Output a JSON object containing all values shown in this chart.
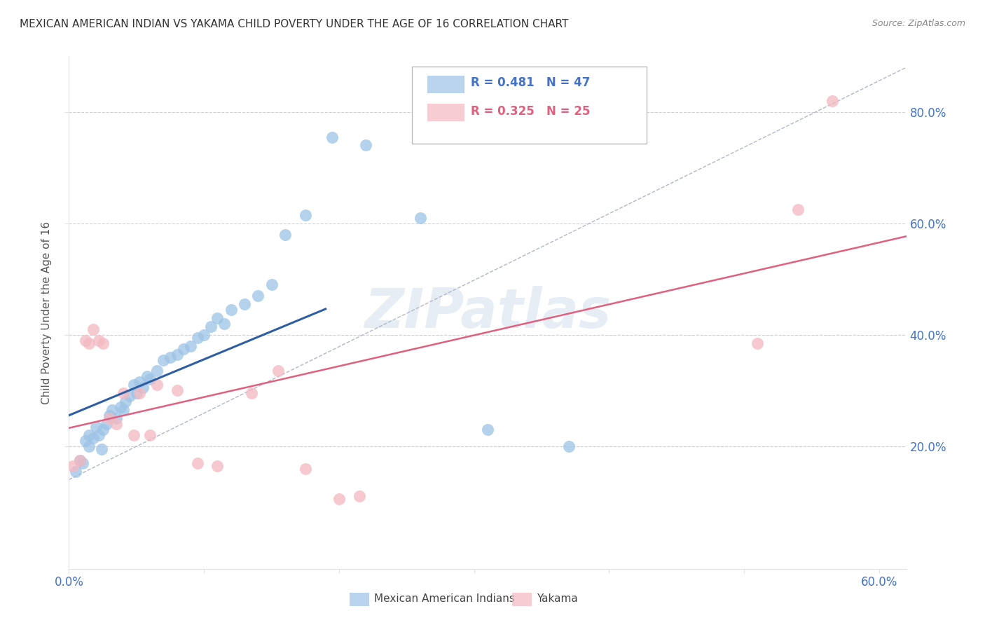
{
  "title": "MEXICAN AMERICAN INDIAN VS YAKAMA CHILD POVERTY UNDER THE AGE OF 16 CORRELATION CHART",
  "source": "Source: ZipAtlas.com",
  "ylabel": "Child Poverty Under the Age of 16",
  "xlim": [
    0.0,
    0.62
  ],
  "ylim": [
    -0.02,
    0.9
  ],
  "xticks": [
    0.0,
    0.1,
    0.2,
    0.3,
    0.4,
    0.5,
    0.6
  ],
  "yticks": [
    0.2,
    0.4,
    0.6,
    0.8
  ],
  "ytick_labels_right": [
    "20.0%",
    "40.0%",
    "60.0%",
    "80.0%"
  ],
  "axis_tick_color": "#4472c4",
  "blue_color": "#9dc3e6",
  "pink_color": "#f4b8c1",
  "blue_line_color": "#2e5fa3",
  "pink_line_color": "#e06080",
  "watermark": "ZIPatlas",
  "blue_scatter_x": [
    0.005,
    0.008,
    0.01,
    0.012,
    0.015,
    0.015,
    0.018,
    0.02,
    0.022,
    0.024,
    0.025,
    0.028,
    0.03,
    0.032,
    0.035,
    0.038,
    0.04,
    0.042,
    0.045,
    0.048,
    0.05,
    0.052,
    0.055,
    0.058,
    0.06,
    0.065,
    0.07,
    0.075,
    0.08,
    0.085,
    0.09,
    0.095,
    0.1,
    0.105,
    0.11,
    0.115,
    0.12,
    0.13,
    0.14,
    0.15,
    0.16,
    0.175,
    0.195,
    0.22,
    0.26,
    0.31,
    0.37
  ],
  "blue_scatter_y": [
    0.155,
    0.175,
    0.17,
    0.21,
    0.2,
    0.22,
    0.215,
    0.235,
    0.22,
    0.195,
    0.23,
    0.24,
    0.255,
    0.265,
    0.25,
    0.27,
    0.265,
    0.28,
    0.29,
    0.31,
    0.295,
    0.315,
    0.305,
    0.325,
    0.32,
    0.335,
    0.355,
    0.36,
    0.365,
    0.375,
    0.38,
    0.395,
    0.4,
    0.415,
    0.43,
    0.42,
    0.445,
    0.455,
    0.47,
    0.49,
    0.58,
    0.615,
    0.755,
    0.74,
    0.61,
    0.23,
    0.2
  ],
  "pink_scatter_x": [
    0.003,
    0.008,
    0.012,
    0.015,
    0.018,
    0.022,
    0.025,
    0.03,
    0.035,
    0.04,
    0.048,
    0.052,
    0.06,
    0.065,
    0.08,
    0.095,
    0.11,
    0.135,
    0.155,
    0.175,
    0.2,
    0.215,
    0.51,
    0.54,
    0.565
  ],
  "pink_scatter_y": [
    0.165,
    0.175,
    0.39,
    0.385,
    0.41,
    0.39,
    0.385,
    0.25,
    0.24,
    0.295,
    0.22,
    0.295,
    0.22,
    0.31,
    0.3,
    0.17,
    0.165,
    0.295,
    0.335,
    0.16,
    0.105,
    0.11,
    0.385,
    0.625,
    0.82
  ],
  "background_color": "#ffffff",
  "grid_color": "#d0d0d0"
}
